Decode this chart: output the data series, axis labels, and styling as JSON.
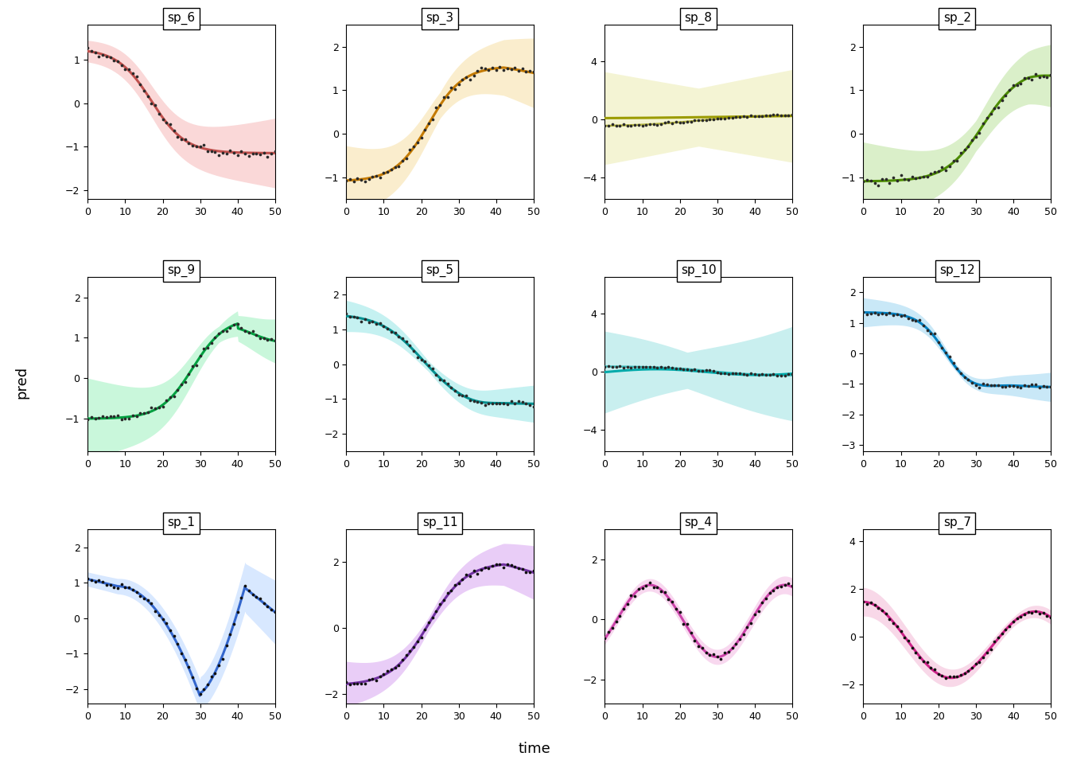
{
  "panels": [
    {
      "title": "sp_6",
      "row": 0,
      "col": 0,
      "line_color": "#C0504D",
      "fill_color": "#F4AAAA",
      "dot_color": "#2a2a2a",
      "ylim": [
        -2.2,
        1.8
      ],
      "yticks": [
        -2,
        -1,
        0,
        1
      ]
    },
    {
      "title": "sp_3",
      "row": 0,
      "col": 1,
      "line_color": "#C47A00",
      "fill_color": "#F5D990",
      "dot_color": "#2a2a2a",
      "ylim": [
        -1.5,
        2.5
      ],
      "yticks": [
        -1,
        0,
        1,
        2
      ]
    },
    {
      "title": "sp_8",
      "row": 0,
      "col": 2,
      "line_color": "#9B9B00",
      "fill_color": "#E8E8A0",
      "dot_color": "#2a2a2a",
      "ylim": [
        -5.5,
        6.5
      ],
      "yticks": [
        -4,
        0,
        4
      ],
      "two_lines": true
    },
    {
      "title": "sp_2",
      "row": 0,
      "col": 3,
      "line_color": "#4C8C00",
      "fill_color": "#AEDD88",
      "dot_color": "#2a2a2a",
      "ylim": [
        -1.5,
        2.5
      ],
      "yticks": [
        -1,
        0,
        1,
        2
      ]
    },
    {
      "title": "sp_9",
      "row": 1,
      "col": 0,
      "line_color": "#00A040",
      "fill_color": "#88EEB0",
      "dot_color": "#2a2a2a",
      "ylim": [
        -1.8,
        2.5
      ],
      "yticks": [
        -1,
        0,
        1,
        2
      ]
    },
    {
      "title": "sp_5",
      "row": 1,
      "col": 1,
      "line_color": "#009090",
      "fill_color": "#80E0E0",
      "dot_color": "#2a2a2a",
      "ylim": [
        -2.5,
        2.5
      ],
      "yticks": [
        -2,
        -1,
        0,
        1,
        2
      ]
    },
    {
      "title": "sp_10",
      "row": 1,
      "col": 2,
      "line_color": "#00AAAA",
      "fill_color": "#88DDDD",
      "dot_color": "#2a2a2a",
      "ylim": [
        -5.5,
        6.5
      ],
      "yticks": [
        -4,
        0,
        4
      ],
      "two_lines": true
    },
    {
      "title": "sp_12",
      "row": 1,
      "col": 3,
      "line_color": "#0080C0",
      "fill_color": "#88CCEE",
      "dot_color": "#2a2a2a",
      "ylim": [
        -3.2,
        2.5
      ],
      "yticks": [
        -3,
        -2,
        -1,
        0,
        1,
        2
      ]
    },
    {
      "title": "sp_1",
      "row": 2,
      "col": 0,
      "line_color": "#3366CC",
      "fill_color": "#AACCFF",
      "dot_color": "#111111",
      "ylim": [
        -2.4,
        2.5
      ],
      "yticks": [
        -2,
        -1,
        0,
        1,
        2
      ]
    },
    {
      "title": "sp_11",
      "row": 2,
      "col": 1,
      "line_color": "#7030A0",
      "fill_color": "#D090EE",
      "dot_color": "#111111",
      "ylim": [
        -2.3,
        3.0
      ],
      "yticks": [
        -2,
        0,
        2
      ]
    },
    {
      "title": "sp_4",
      "row": 2,
      "col": 2,
      "line_color": "#CC44AA",
      "fill_color": "#F0AADD",
      "dot_color": "#111111",
      "ylim": [
        -2.8,
        3.0
      ],
      "yticks": [
        -2,
        0,
        2
      ]
    },
    {
      "title": "sp_7",
      "row": 2,
      "col": 3,
      "line_color": "#CC2288",
      "fill_color": "#F0AACC",
      "dot_color": "#111111",
      "ylim": [
        -2.8,
        4.5
      ],
      "yticks": [
        -2,
        0,
        2,
        4
      ]
    }
  ],
  "xlabel": "time",
  "ylabel": "pred",
  "xlim": [
    0,
    50
  ],
  "xticks": [
    0,
    10,
    20,
    30,
    40,
    50
  ],
  "nrows": 3,
  "ncols": 4,
  "dot_size": 7,
  "line_width": 2.2,
  "alpha_fill": 0.45
}
